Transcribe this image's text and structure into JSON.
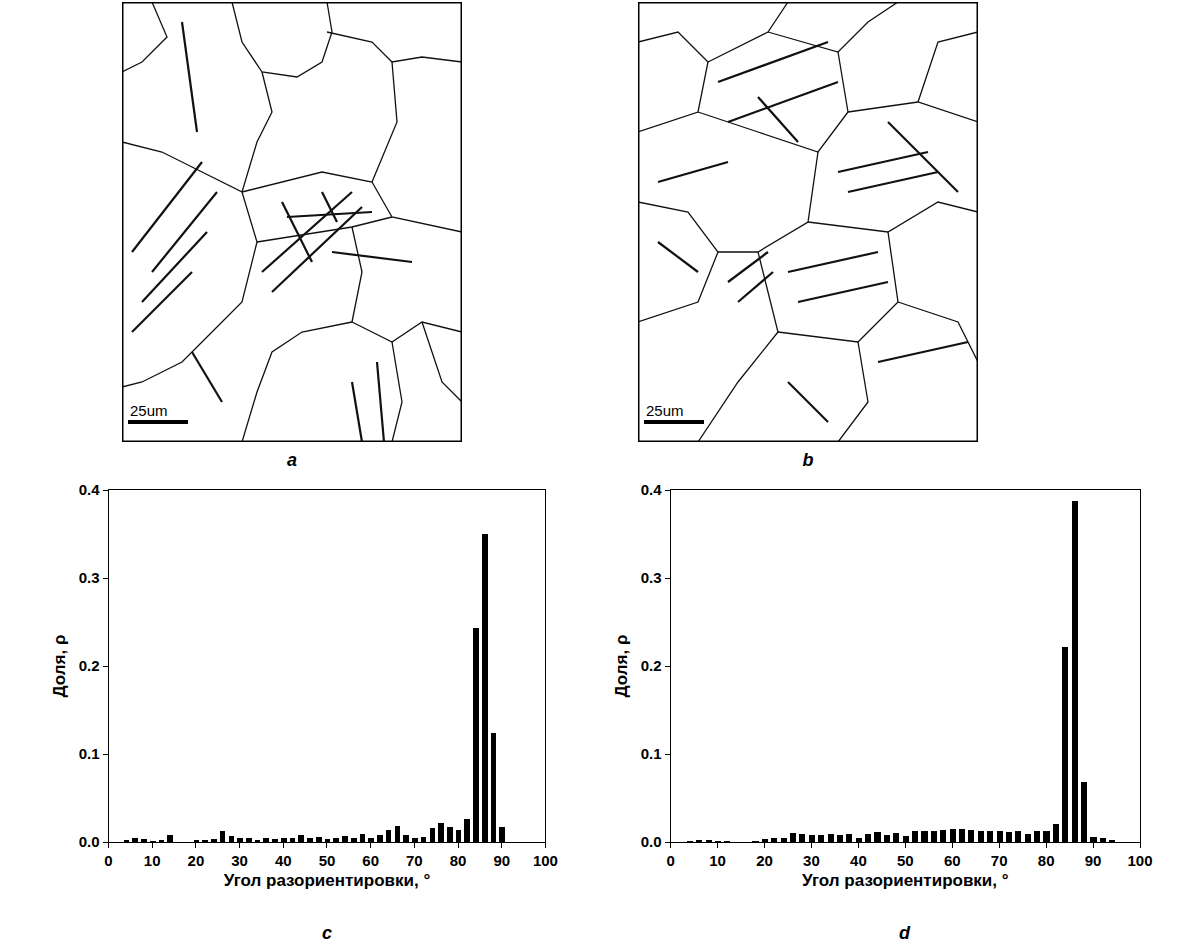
{
  "maps": [
    {
      "panel": "a",
      "scale_bar": "25um"
    },
    {
      "panel": "b",
      "scale_bar": "25um"
    }
  ],
  "chart_data": [
    {
      "type": "bar",
      "panel": "c",
      "color": "#000000",
      "x_label": "Угол разориентировки, °",
      "y_label": "Доля, ρ",
      "x": [
        4,
        6,
        8,
        10,
        12,
        14,
        16,
        18,
        20,
        22,
        24,
        26,
        28,
        30,
        32,
        34,
        36,
        38,
        40,
        42,
        44,
        46,
        48,
        50,
        52,
        54,
        56,
        58,
        60,
        62,
        64,
        66,
        68,
        70,
        72,
        74,
        76,
        78,
        80,
        82,
        84,
        86,
        88,
        90
      ],
      "values": [
        0.002,
        0.005,
        0.003,
        0.001,
        0.002,
        0.008,
        0,
        0,
        0.002,
        0.002,
        0.003,
        0.012,
        0.007,
        0.004,
        0.005,
        0.002,
        0.004,
        0.003,
        0.004,
        0.005,
        0.008,
        0.005,
        0.006,
        0.003,
        0.004,
        0.007,
        0.005,
        0.009,
        0.005,
        0.008,
        0.014,
        0.018,
        0.008,
        0.004,
        0.006,
        0.016,
        0.022,
        0.017,
        0.014,
        0.026,
        0.243,
        0.35,
        0.124,
        0.017
      ],
      "xlim": [
        0,
        100
      ],
      "xticks": [
        0,
        10,
        20,
        30,
        40,
        50,
        60,
        70,
        80,
        90,
        100
      ],
      "ylim": [
        0,
        0.4
      ],
      "yticks": [
        {
          "value": 0,
          "label": "0.0"
        },
        0.1,
        0.2,
        0.3,
        0.4
      ]
    },
    {
      "type": "bar",
      "panel": "d",
      "color": "#000000",
      "x_label": "Угол разориентировки, °",
      "y_label": "Доля, ρ",
      "x": [
        4,
        6,
        8,
        10,
        12,
        14,
        16,
        18,
        20,
        22,
        24,
        26,
        28,
        30,
        32,
        34,
        36,
        38,
        40,
        42,
        44,
        46,
        48,
        50,
        52,
        54,
        56,
        58,
        60,
        62,
        64,
        66,
        68,
        70,
        72,
        74,
        76,
        78,
        80,
        82,
        84,
        86,
        88,
        90,
        92,
        94
      ],
      "values": [
        0.001,
        0.002,
        0.002,
        0.001,
        0.001,
        0,
        0,
        0.001,
        0.003,
        0.004,
        0.005,
        0.01,
        0.009,
        0.008,
        0.008,
        0.009,
        0.008,
        0.009,
        0.005,
        0.009,
        0.011,
        0.008,
        0.01,
        0.007,
        0.012,
        0.013,
        0.012,
        0.014,
        0.015,
        0.015,
        0.014,
        0.012,
        0.013,
        0.012,
        0.011,
        0.012,
        0.009,
        0.012,
        0.013,
        0.021,
        0.222,
        0.387,
        0.068,
        0.006,
        0.004,
        0.002
      ],
      "xlim": [
        0,
        100
      ],
      "xticks": [
        0,
        10,
        20,
        30,
        40,
        50,
        60,
        70,
        80,
        90,
        100
      ],
      "ylim": [
        0,
        0.4
      ],
      "yticks": [
        {
          "value": 0,
          "label": "0.0"
        },
        0.1,
        0.2,
        0.3,
        0.4
      ]
    }
  ]
}
